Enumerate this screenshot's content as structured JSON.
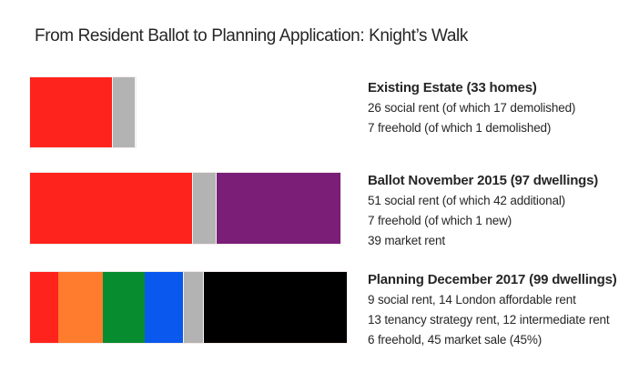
{
  "title": "From Resident Ballot to Planning Application: Knight’s Walk",
  "chart_data": {
    "type": "bar",
    "subtype": "horizontal-stacked",
    "title": "From Resident Ballot to Planning Application: Knight’s Walk",
    "unit": "dwellings",
    "grid": false,
    "legend_position": "none",
    "axis_labels": "none",
    "max_total": 99,
    "segment_colors": {
      "social_rent": "#FF231D",
      "london_affordable_rent": "#FF7B2E",
      "tenancy_strategy_rent": "#078C2F",
      "intermediate_rent": "#0A58ED",
      "freehold": "#B3B3B3",
      "market_rent": "#7A1E78",
      "market_sale": "#000000"
    },
    "rows": [
      {
        "heading": "Existing Estate (33 homes)",
        "total": 33,
        "lines": [
          "26 social rent (of which 17 demolished)",
          "7 freehold (of which 1 demolished)"
        ],
        "segments": [
          {
            "label": "social rent",
            "value": 26,
            "color": "#FF231D"
          },
          {
            "label": "freehold",
            "value": 7,
            "color": "#B3B3B3"
          }
        ]
      },
      {
        "heading": "Ballot November 2015 (97 dwellings)",
        "total": 97,
        "lines": [
          "51 social rent (of which 42 additional)",
          "7 freehold (of which 1 new)",
          "39 market rent"
        ],
        "segments": [
          {
            "label": "social rent",
            "value": 51,
            "color": "#FF231D"
          },
          {
            "label": "freehold",
            "value": 7,
            "color": "#B3B3B3"
          },
          {
            "label": "market rent",
            "value": 39,
            "color": "#7A1E78"
          }
        ]
      },
      {
        "heading": "Planning December 2017 (99 dwellings)",
        "total": 99,
        "lines": [
          "9 social rent, 14 London affordable rent",
          "13 tenancy strategy rent, 12 intermediate rent",
          "6 freehold, 45 market sale (45%)"
        ],
        "segments": [
          {
            "label": "social rent",
            "value": 9,
            "color": "#FF231D"
          },
          {
            "label": "London affordable rent",
            "value": 14,
            "color": "#FF7B2E"
          },
          {
            "label": "tenancy strategy rent",
            "value": 13,
            "color": "#078C2F"
          },
          {
            "label": "intermediate rent",
            "value": 12,
            "color": "#0A58ED"
          },
          {
            "label": "freehold",
            "value": 6,
            "color": "#B3B3B3"
          },
          {
            "label": "market sale",
            "value": 45,
            "color": "#000000"
          }
        ]
      }
    ]
  }
}
